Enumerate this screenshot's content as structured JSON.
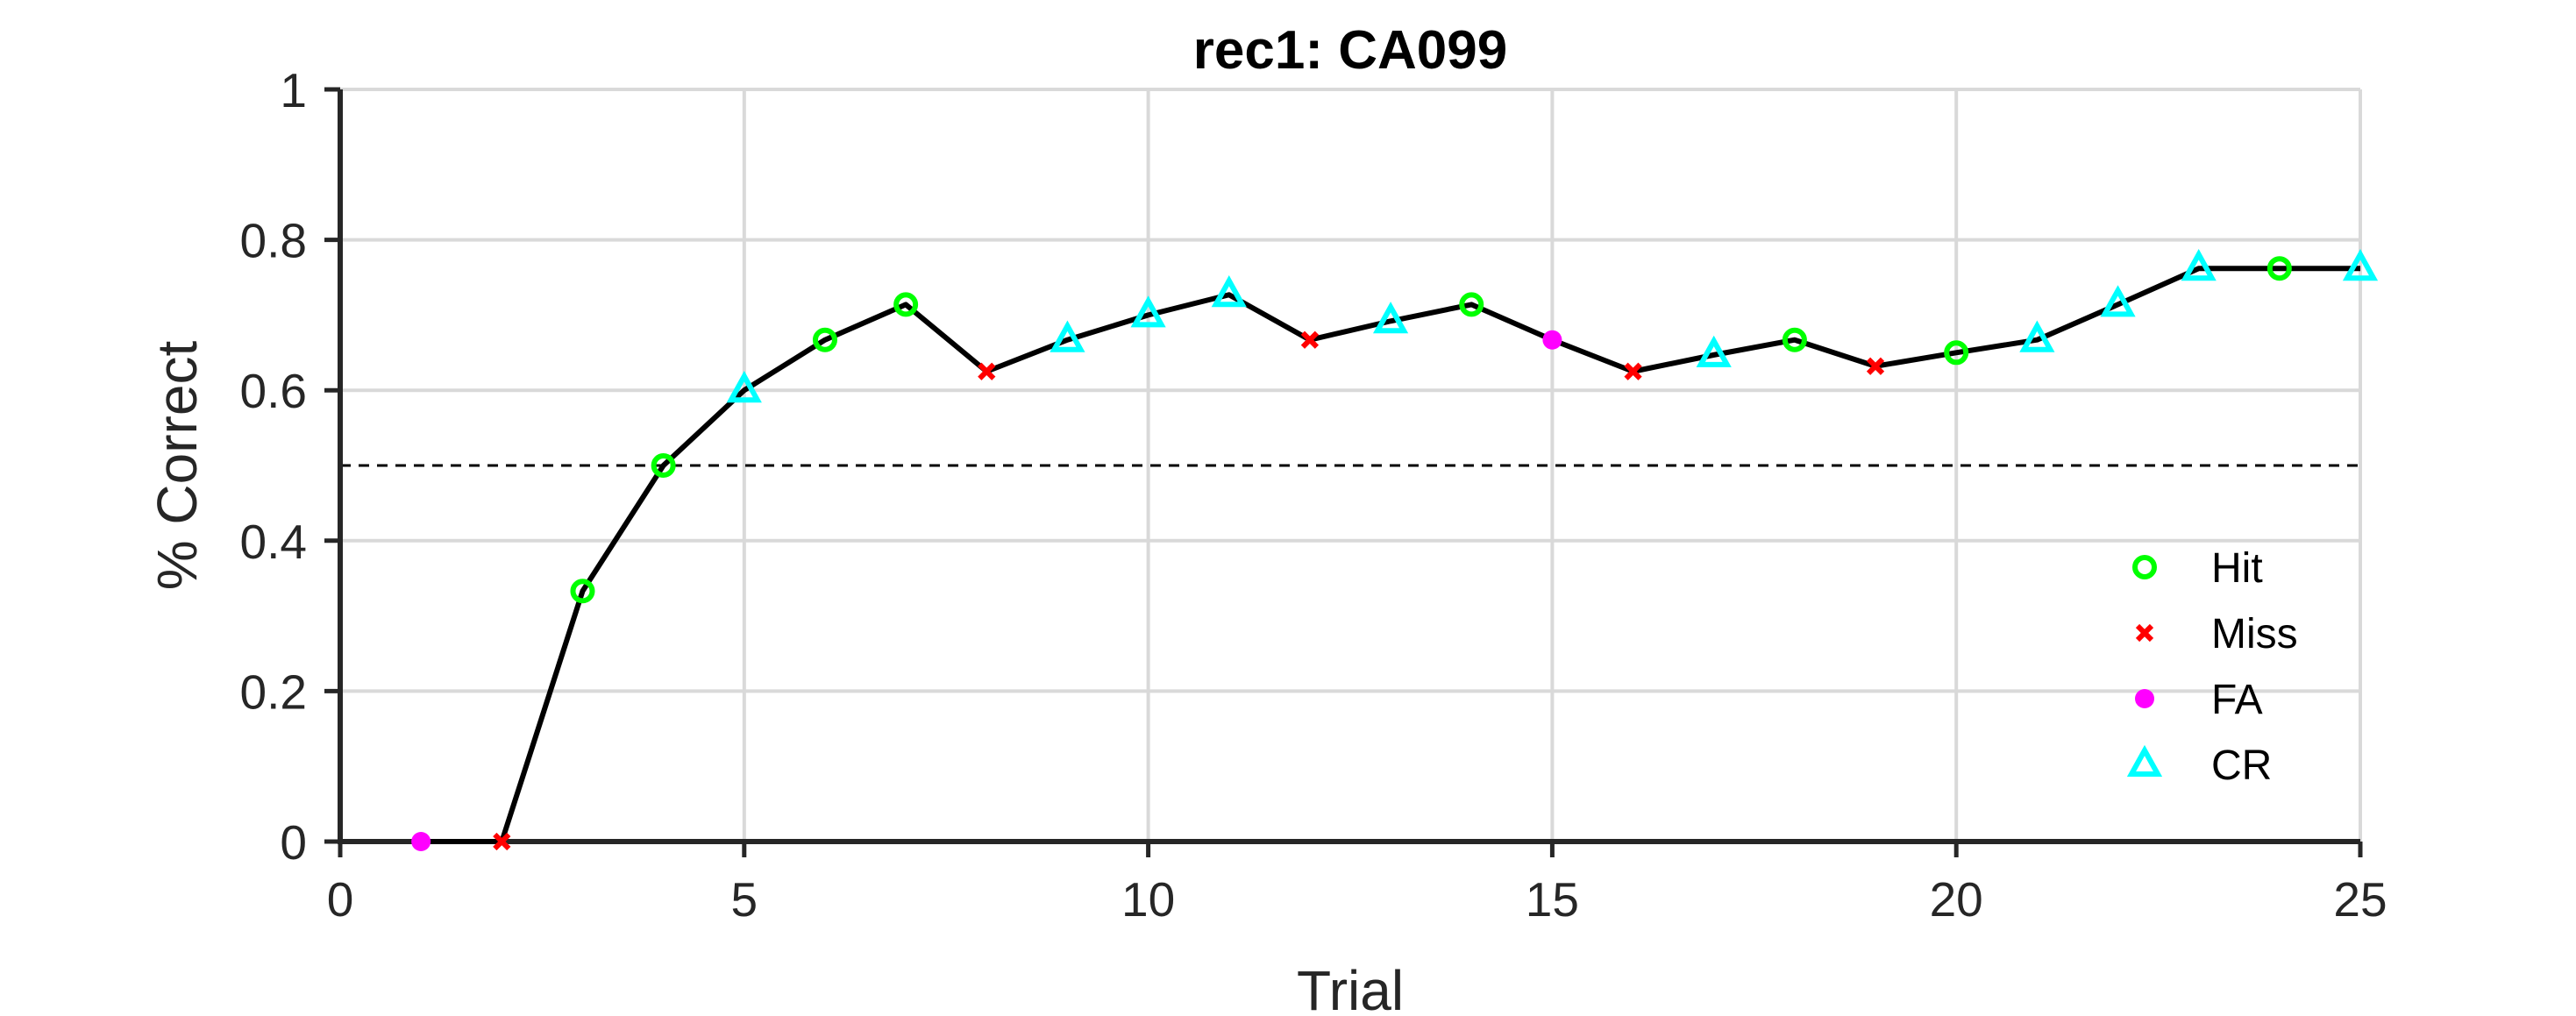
{
  "chart_data": {
    "type": "line",
    "title": "rec1: CA099",
    "xlabel": "Trial",
    "ylabel": "% Correct",
    "xlim": [
      0,
      25
    ],
    "ylim": [
      0,
      1
    ],
    "xticks": [
      0,
      5,
      10,
      15,
      20,
      25
    ],
    "yticks": [
      0,
      0.2,
      0.4,
      0.6,
      0.8,
      1
    ],
    "grid": true,
    "reference_line": {
      "y": 0.5,
      "style": "dashed"
    },
    "line_color": "#000000",
    "x": [
      1,
      2,
      3,
      4,
      5,
      6,
      7,
      8,
      9,
      10,
      11,
      12,
      13,
      14,
      15,
      16,
      17,
      18,
      19,
      20,
      21,
      22,
      23,
      24,
      25
    ],
    "y": [
      0,
      0,
      0.333,
      0.5,
      0.6,
      0.667,
      0.714,
      0.625,
      0.667,
      0.7,
      0.727,
      0.667,
      0.692,
      0.714,
      0.667,
      0.625,
      0.647,
      0.667,
      0.632,
      0.65,
      0.667,
      0.714,
      0.762,
      0.762,
      0.762
    ],
    "outcomes": [
      "FA",
      "Miss",
      "Hit",
      "Hit",
      "CR",
      "Hit",
      "Hit",
      "Miss",
      "CR",
      "CR",
      "CR",
      "Miss",
      "CR",
      "Hit",
      "FA",
      "Miss",
      "CR",
      "Hit",
      "Miss",
      "Hit",
      "CR",
      "CR",
      "CR",
      "Hit",
      "CR"
    ],
    "legend": {
      "placement": "lower-right",
      "entries": [
        {
          "key": "Hit",
          "label": "Hit",
          "marker": "circle-open",
          "color": "#00ff00"
        },
        {
          "key": "Miss",
          "label": "Miss",
          "marker": "x",
          "color": "#ff0000"
        },
        {
          "key": "FA",
          "label": "FA",
          "marker": "circle-filled",
          "color": "#ff00ff"
        },
        {
          "key": "CR",
          "label": "CR",
          "marker": "triangle-open",
          "color": "#00ffff"
        }
      ]
    }
  }
}
